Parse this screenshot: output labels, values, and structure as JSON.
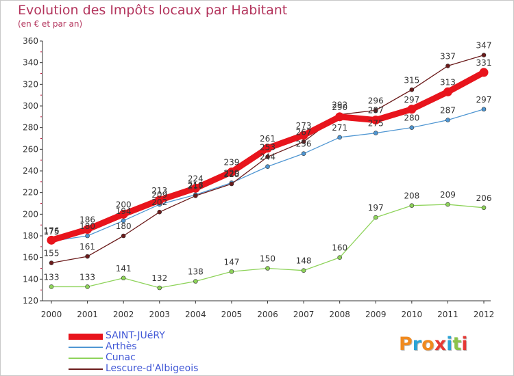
{
  "title": "Evolution des Impôts locaux par Habitant",
  "subtitle": "(en € et par an)",
  "logo": {
    "text": "Proxiti",
    "letters": [
      {
        "ch": "P",
        "color": "#f08a1f"
      },
      {
        "ch": "r",
        "color": "#29a3d6"
      },
      {
        "ch": "o",
        "color": "#f08a1f"
      },
      {
        "ch": "x",
        "color": "#e53935"
      },
      {
        "ch": "i",
        "color": "#29a3d6"
      },
      {
        "ch": "t",
        "color": "#8bc34a"
      },
      {
        "ch": "i",
        "color": "#e53935"
      }
    ]
  },
  "chart_data": {
    "type": "line",
    "x": [
      "2000",
      "2001",
      "2002",
      "2003",
      "2004",
      "2005",
      "2006",
      "2007",
      "2008",
      "2009",
      "2010",
      "2011",
      "2012"
    ],
    "ylim": [
      120,
      360
    ],
    "yticks": [
      120,
      140,
      160,
      180,
      200,
      220,
      240,
      260,
      280,
      300,
      320,
      340,
      360
    ],
    "grid": false,
    "legend_position": "bottom-left",
    "series": [
      {
        "name": "SAINT-JUéRY",
        "color": "#e8141c",
        "values": [
          176,
          186,
          200,
          213,
          224,
          239,
          261,
          273,
          290,
          287,
          297,
          313,
          331
        ]
      },
      {
        "name": "Arthès",
        "color": "#4f96d2",
        "values": [
          175,
          180,
          194,
          209,
          218,
          229,
          244,
          256,
          271,
          275,
          280,
          287,
          297
        ]
      },
      {
        "name": "Cunac",
        "color": "#8ed35a",
        "values": [
          133,
          133,
          141,
          132,
          138,
          147,
          150,
          148,
          160,
          197,
          208,
          209,
          206
        ]
      },
      {
        "name": "Lescure-d'Albigeois",
        "color": "#6b1b1b",
        "values": [
          155,
          161,
          180,
          202,
          217,
          228,
          253,
          267,
          292,
          296,
          315,
          337,
          347
        ]
      }
    ]
  }
}
